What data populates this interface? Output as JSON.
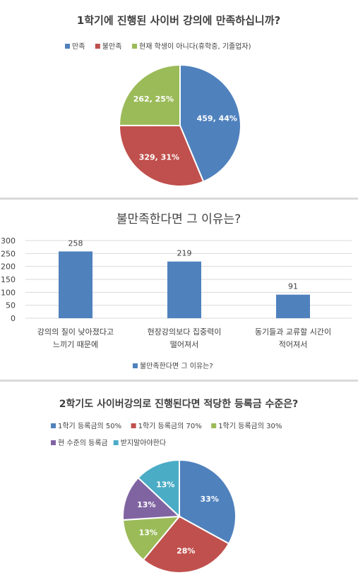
{
  "chart_data": [
    {
      "type": "pie",
      "title": "1학기에 진행된 사이버 강의에 만족하십니까?",
      "legend_position": "top",
      "slices": [
        {
          "label": "만족",
          "value": 459,
          "percent": 44,
          "data_label": "459, 44%",
          "color": "#4f81bd"
        },
        {
          "label": "불만족",
          "value": 329,
          "percent": 31,
          "data_label": "329, 31%",
          "color": "#c0504d"
        },
        {
          "label": "현재 학생이 아니다(휴학중, 기졸업자)",
          "value": 262,
          "percent": 25,
          "data_label": "262, 25%",
          "color": "#9bbb59"
        }
      ]
    },
    {
      "type": "bar",
      "title": "불만족한다면 그 이유는?",
      "categories": [
        [
          "강의의 질이 낮아졌다고",
          "느끼기 때문에"
        ],
        [
          "현장강의보다 집중력이",
          "떨어져서"
        ],
        [
          "동기들과 교류할 시간이",
          "적어져서"
        ]
      ],
      "series": [
        {
          "name": "불만족한다면 그 이유는?",
          "values": [
            258,
            219,
            91
          ],
          "color": "#4f81bd"
        }
      ],
      "ylim": [
        0,
        300
      ],
      "yticks": [
        "0",
        "50",
        "100",
        "150",
        "200",
        "250",
        "300"
      ],
      "grid": true,
      "legend_position": "bottom"
    },
    {
      "type": "pie",
      "title": "2학기도 사이버강의로 진행된다면 적당한 등록금 수준은?",
      "legend_position": "top",
      "slices": [
        {
          "label": "1학기 등록금의 50%",
          "percent": 33,
          "data_label": "33%",
          "color": "#4f81bd"
        },
        {
          "label": "1학기 등록금의 70%",
          "percent": 28,
          "data_label": "28%",
          "color": "#c0504d"
        },
        {
          "label": "1학기 등록금의 30%",
          "percent": 13,
          "data_label": "13%",
          "color": "#9bbb59"
        },
        {
          "label": "현 수준의 등록금",
          "percent": 13,
          "data_label": "13%",
          "color": "#8064a2"
        },
        {
          "label": "받지말아야한다",
          "percent": 13,
          "data_label": "13%",
          "color": "#4bacc6"
        }
      ]
    }
  ]
}
